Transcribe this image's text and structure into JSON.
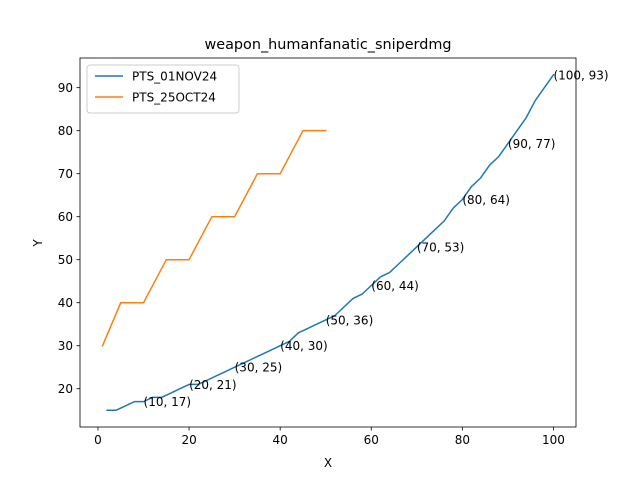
{
  "chart_data": {
    "type": "line",
    "title": "weapon_humanfanatic_sniperdmg",
    "xlabel": "X",
    "ylabel": "Y",
    "xlim": [
      -3.95,
      104.95
    ],
    "ylim": [
      11.1,
      96.9
    ],
    "xticks": [
      0,
      20,
      40,
      60,
      80,
      100
    ],
    "yticks": [
      20,
      30,
      40,
      50,
      60,
      70,
      80,
      90
    ],
    "grid": false,
    "legend": "top-left",
    "series": [
      {
        "name": "PTS_01NOV24",
        "color": "#1f77b4",
        "x": [
          2,
          4,
          6,
          8,
          10,
          12,
          14,
          16,
          18,
          20,
          22,
          24,
          26,
          28,
          30,
          32,
          34,
          36,
          38,
          40,
          42,
          44,
          46,
          48,
          50,
          52,
          54,
          56,
          58,
          60,
          62,
          64,
          66,
          68,
          70,
          72,
          74,
          76,
          78,
          80,
          82,
          84,
          86,
          88,
          90,
          92,
          94,
          96,
          98,
          100
        ],
        "y": [
          15,
          15,
          16,
          17,
          17,
          18,
          18,
          19,
          20,
          21,
          21,
          22,
          23,
          24,
          25,
          26,
          27,
          28,
          29,
          30,
          31,
          33,
          34,
          35,
          36,
          37,
          39,
          41,
          42,
          44,
          46,
          47,
          49,
          51,
          53,
          55,
          57,
          59,
          62,
          64,
          67,
          69,
          72,
          74,
          77,
          80,
          83,
          87,
          90,
          93
        ]
      },
      {
        "name": "PTS_25OCT24",
        "color": "#ff7f0e",
        "x": [
          1,
          5,
          10,
          15,
          20,
          25,
          30,
          35,
          40,
          45,
          50
        ],
        "y": [
          30,
          40,
          40,
          50,
          50,
          60,
          60,
          70,
          70,
          80,
          80
        ]
      }
    ],
    "annotations": [
      {
        "x": 10,
        "y": 17,
        "text": "(10, 17)"
      },
      {
        "x": 20,
        "y": 21,
        "text": "(20, 21)"
      },
      {
        "x": 30,
        "y": 25,
        "text": "(30, 25)"
      },
      {
        "x": 40,
        "y": 30,
        "text": "(40, 30)"
      },
      {
        "x": 50,
        "y": 36,
        "text": "(50, 36)"
      },
      {
        "x": 60,
        "y": 44,
        "text": "(60, 44)"
      },
      {
        "x": 70,
        "y": 53,
        "text": "(70, 53)"
      },
      {
        "x": 80,
        "y": 64,
        "text": "(80, 64)"
      },
      {
        "x": 90,
        "y": 77,
        "text": "(90, 77)"
      },
      {
        "x": 100,
        "y": 93,
        "text": "(100, 93)"
      }
    ]
  }
}
